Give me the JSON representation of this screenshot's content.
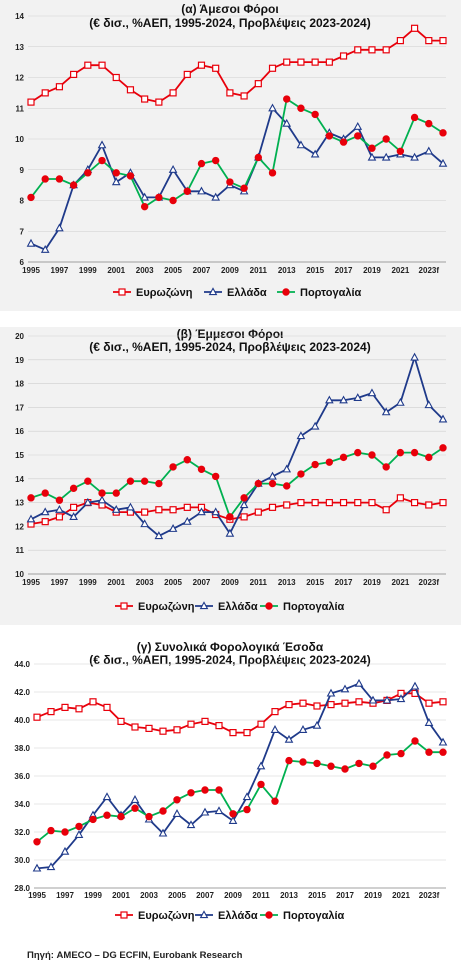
{
  "source": "Πηγή: AMECO – DG ECFIN, Eurobank Research",
  "colors": {
    "eurozone": "#e8000b",
    "greece": "#1f3a8a",
    "portugal_line": "#00b050",
    "portugal_marker": "#e8000b"
  },
  "chart_data": [
    {
      "type": "line",
      "title": "(α) Άμεσοι Φόροι",
      "subtitle": "(€ δισ., %ΑΕΠ, 1995-2024, Προβλέψεις 2023-2024)",
      "x": [
        "1995",
        "1996",
        "1997",
        "1998",
        "1999",
        "2000",
        "2001",
        "2002",
        "2003",
        "2004",
        "2005",
        "2006",
        "2007",
        "2008",
        "2009",
        "2010",
        "2011",
        "2012",
        "2013",
        "2014",
        "2015",
        "2016",
        "2017",
        "2018",
        "2019",
        "2020",
        "2021",
        "2022",
        "2023f",
        "2024f"
      ],
      "xticks": [
        "1995",
        "1997",
        "1999",
        "2001",
        "2003",
        "2005",
        "2007",
        "2009",
        "2011",
        "2013",
        "2015",
        "2017",
        "2019",
        "2021",
        "2023f"
      ],
      "ylim": [
        6,
        14
      ],
      "yticks": [
        "6",
        "7",
        "8",
        "9",
        "10",
        "11",
        "12",
        "13",
        "14"
      ],
      "legend_position": "bottom",
      "series": [
        {
          "name": "Ευρωζώνη",
          "marker": "square",
          "values": [
            11.2,
            11.5,
            11.7,
            12.1,
            12.4,
            12.4,
            12.0,
            11.6,
            11.3,
            11.2,
            11.5,
            12.1,
            12.4,
            12.3,
            11.5,
            11.4,
            11.8,
            12.3,
            12.5,
            12.5,
            12.5,
            12.5,
            12.7,
            12.9,
            12.9,
            12.9,
            13.2,
            13.6,
            13.2,
            13.2
          ]
        },
        {
          "name": "Ελλάδα",
          "marker": "triangle",
          "values": [
            6.6,
            6.4,
            7.1,
            8.5,
            9.0,
            9.8,
            8.6,
            8.9,
            8.1,
            8.1,
            9.0,
            8.3,
            8.3,
            8.1,
            8.5,
            8.3,
            9.4,
            11.0,
            10.5,
            9.8,
            9.5,
            10.2,
            10.0,
            10.4,
            9.4,
            9.4,
            9.5,
            9.4,
            9.6,
            9.2
          ]
        },
        {
          "name": "Πορτογαλία",
          "marker": "circle",
          "values": [
            8.1,
            8.7,
            8.7,
            8.5,
            8.9,
            9.3,
            8.9,
            8.8,
            7.8,
            8.1,
            8.0,
            8.3,
            9.2,
            9.3,
            8.6,
            8.4,
            9.4,
            8.9,
            11.3,
            11.0,
            10.8,
            10.1,
            9.9,
            10.1,
            9.7,
            10.0,
            9.6,
            10.7,
            10.5,
            10.2
          ]
        }
      ]
    },
    {
      "type": "line",
      "title": "(β) Έμμεσοι Φόροι",
      "subtitle": "(€ δισ., %ΑΕΠ, 1995-2024, Προβλέψεις 2023-2024)",
      "x": [
        "1995",
        "1996",
        "1997",
        "1998",
        "1999",
        "2000",
        "2001",
        "2002",
        "2003",
        "2004",
        "2005",
        "2006",
        "2007",
        "2008",
        "2009",
        "2010",
        "2011",
        "2012",
        "2013",
        "2014",
        "2015",
        "2016",
        "2017",
        "2018",
        "2019",
        "2020",
        "2021",
        "2022",
        "2023f",
        "2024f"
      ],
      "xticks": [
        "1995",
        "1997",
        "1999",
        "2001",
        "2003",
        "2005",
        "2007",
        "2009",
        "2011",
        "2013",
        "2015",
        "2017",
        "2019",
        "2021",
        "2023f"
      ],
      "ylim": [
        10,
        20
      ],
      "yticks": [
        "10",
        "11",
        "12",
        "13",
        "14",
        "15",
        "16",
        "17",
        "18",
        "19",
        "20"
      ],
      "legend_position": "bottom",
      "series": [
        {
          "name": "Ευρωζώνη",
          "marker": "square",
          "values": [
            12.1,
            12.2,
            12.4,
            12.8,
            13.0,
            12.9,
            12.6,
            12.6,
            12.6,
            12.7,
            12.7,
            12.8,
            12.8,
            12.5,
            12.3,
            12.4,
            12.6,
            12.8,
            12.9,
            13.0,
            13.0,
            13.0,
            13.0,
            13.0,
            13.0,
            12.7,
            13.2,
            13.0,
            12.9,
            13.0
          ]
        },
        {
          "name": "Ελλάδα",
          "marker": "triangle",
          "values": [
            12.3,
            12.6,
            12.7,
            12.4,
            13.0,
            13.1,
            12.7,
            12.8,
            12.1,
            11.6,
            11.9,
            12.2,
            12.6,
            12.6,
            11.7,
            12.9,
            13.8,
            14.1,
            14.4,
            15.8,
            16.2,
            17.3,
            17.3,
            17.4,
            17.6,
            16.8,
            17.2,
            19.1,
            17.1,
            16.5
          ]
        },
        {
          "name": "Πορτογαλία",
          "marker": "circle",
          "values": [
            13.2,
            13.4,
            13.1,
            13.6,
            13.9,
            13.4,
            13.4,
            13.9,
            13.9,
            13.8,
            14.5,
            14.8,
            14.4,
            14.1,
            12.4,
            13.2,
            13.8,
            13.8,
            13.7,
            14.2,
            14.6,
            14.7,
            14.9,
            15.1,
            15.0,
            14.5,
            15.1,
            15.1,
            14.9,
            15.3
          ]
        }
      ]
    },
    {
      "type": "line",
      "title": "(γ) Συνολικά Φορολογικά Έσοδα",
      "subtitle": "(€ δισ., %ΑΕΠ, 1995-2024, Προβλέψεις 2023-2024)",
      "x": [
        "1995",
        "1996",
        "1997",
        "1998",
        "1999",
        "2000",
        "2001",
        "2002",
        "2003",
        "2004",
        "2005",
        "2006",
        "2007",
        "2008",
        "2009",
        "2010",
        "2011",
        "2012",
        "2013",
        "2014",
        "2015",
        "2016",
        "2017",
        "2018",
        "2019",
        "2020",
        "2021",
        "2022",
        "2023f",
        "2024f"
      ],
      "xticks": [
        "1995",
        "1997",
        "1999",
        "2001",
        "2003",
        "2005",
        "2007",
        "2009",
        "2011",
        "2013",
        "2015",
        "2017",
        "2019",
        "2021",
        "2023f"
      ],
      "ylim": [
        28.0,
        44.0
      ],
      "yticks": [
        "28.0",
        "30.0",
        "32.0",
        "34.0",
        "36.0",
        "38.0",
        "40.0",
        "42.0",
        "44.0"
      ],
      "legend_position": "bottom",
      "series": [
        {
          "name": "Ευρωζώνη",
          "marker": "square",
          "values": [
            40.2,
            40.6,
            40.9,
            40.8,
            41.3,
            40.9,
            39.9,
            39.5,
            39.4,
            39.2,
            39.3,
            39.7,
            39.9,
            39.6,
            39.1,
            39.1,
            39.7,
            40.6,
            41.1,
            41.2,
            41.0,
            41.1,
            41.2,
            41.3,
            41.2,
            41.4,
            41.9,
            41.9,
            41.2,
            41.3
          ]
        },
        {
          "name": "Ελλάδα",
          "marker": "triangle",
          "values": [
            29.4,
            29.5,
            30.6,
            31.8,
            33.2,
            34.5,
            33.2,
            34.3,
            32.9,
            31.9,
            33.3,
            32.5,
            33.4,
            33.5,
            32.8,
            34.5,
            36.7,
            39.3,
            38.6,
            39.3,
            39.6,
            41.9,
            42.2,
            42.6,
            41.4,
            41.4,
            41.5,
            42.4,
            39.8,
            38.4
          ]
        },
        {
          "name": "Πορτογαλία",
          "marker": "circle",
          "values": [
            31.3,
            32.1,
            32.0,
            32.4,
            32.9,
            33.2,
            33.1,
            33.7,
            33.1,
            33.5,
            34.3,
            34.8,
            35.0,
            35.0,
            33.3,
            33.6,
            35.4,
            34.2,
            37.1,
            37.0,
            36.9,
            36.7,
            36.5,
            36.9,
            36.7,
            37.5,
            37.6,
            38.5,
            37.7,
            37.7
          ]
        }
      ]
    }
  ]
}
